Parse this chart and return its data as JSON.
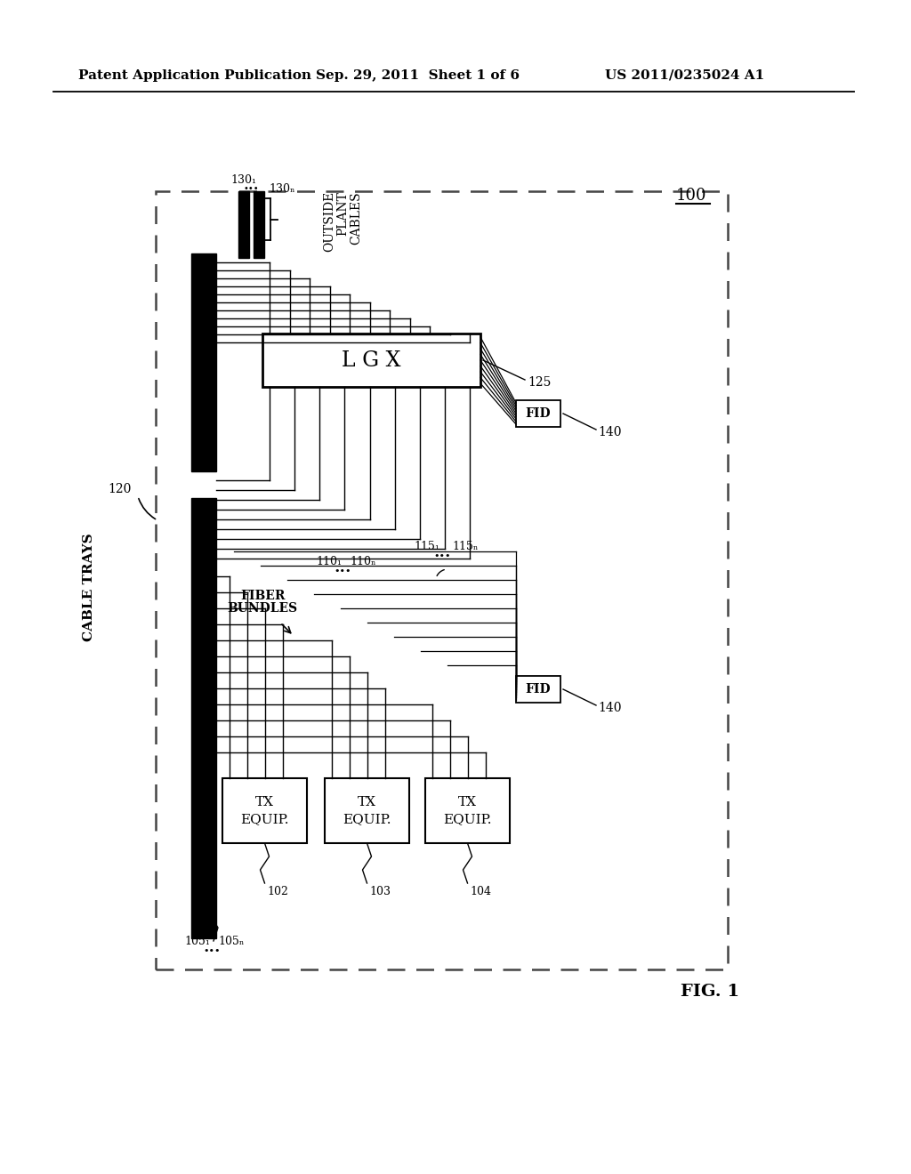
{
  "bg_color": "#ffffff",
  "header_left": "Patent Application Publication",
  "header_center": "Sep. 29, 2011  Sheet 1 of 6",
  "header_right": "US 2011/0235024 A1",
  "fig_label": "FIG. 1",
  "ref_100": "100",
  "ref_120": "120",
  "ref_125": "125",
  "ref_140": "140",
  "ref_102": "102",
  "ref_103": "103",
  "ref_104": "104",
  "ref_110_1": "110₁",
  "ref_110_n": "110ₙ",
  "ref_115_1": "115₁",
  "ref_115_n": "115ₙ",
  "ref_105_1": "105₁",
  "ref_105_n": "105ₙ",
  "ref_130_1": "130₁",
  "ref_130_n": "130ₙ",
  "label_lgx": "L G X",
  "label_fid": "FID",
  "label_cable_trays": "CABLE TRAYS",
  "label_fiber_bundles": "FIBER\nBUNDLES",
  "label_tx_equip": "TX\nEQUIP.",
  "label_outside_plant_1": "OUTSIDE",
  "label_outside_plant_2": "PLANT",
  "label_outside_plant_3": "CABLES"
}
